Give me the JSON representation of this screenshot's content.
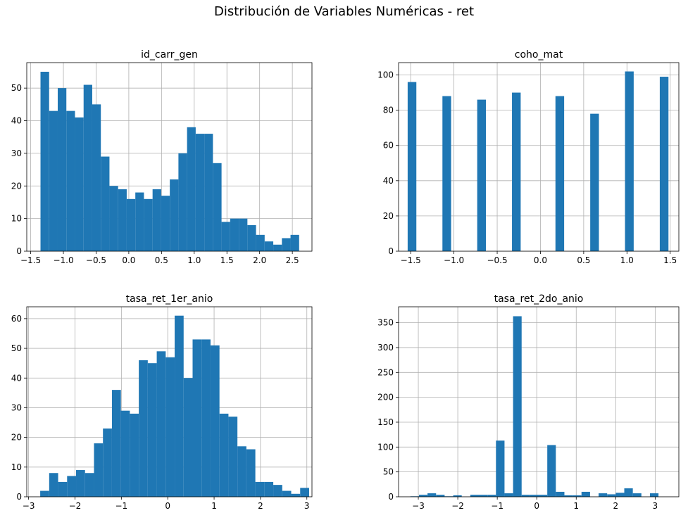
{
  "figure": {
    "title": "Distribución de Variables Numéricas - ret"
  },
  "colors": {
    "bar": "#1f77b4",
    "grid": "#b0b0b0",
    "axis": "#000000"
  },
  "chart_data": [
    {
      "type": "bar",
      "title": "id_carr_gen",
      "bins": {
        "start": -1.35,
        "width": 0.1318
      },
      "values": [
        55,
        43,
        50,
        43,
        41,
        51,
        45,
        29,
        20,
        19,
        16,
        18,
        16,
        19,
        17,
        22,
        30,
        38,
        36,
        36,
        27,
        9,
        10,
        10,
        8,
        5,
        3,
        2,
        4,
        5
      ],
      "xlim": [
        -1.56,
        2.8
      ],
      "ylim": [
        0,
        57.8
      ],
      "xticks": [
        -1.5,
        -1.0,
        -0.5,
        0.0,
        0.5,
        1.0,
        1.5,
        2.0,
        2.5
      ],
      "xtick_labels": [
        "−1.5",
        "−1.0",
        "−0.5",
        "0.0",
        "0.5",
        "1.0",
        "1.5",
        "2.0",
        "2.5"
      ],
      "yticks": [
        0,
        10,
        20,
        30,
        40,
        50
      ],
      "ytick_labels": [
        "0",
        "10",
        "20",
        "30",
        "40",
        "50"
      ],
      "grid": true
    },
    {
      "type": "bar",
      "title": "coho_mat",
      "bins": {
        "start": -1.535,
        "width": 0.1005
      },
      "values": [
        96,
        0,
        0,
        0,
        88,
        0,
        0,
        0,
        86,
        0,
        0,
        0,
        90,
        0,
        0,
        0,
        0,
        88,
        0,
        0,
        0,
        78,
        0,
        0,
        0,
        102,
        0,
        0,
        0,
        99
      ],
      "xlim": [
        -1.64,
        1.6
      ],
      "ylim": [
        0,
        107
      ],
      "xticks": [
        -1.5,
        -1.0,
        -0.5,
        0.0,
        0.5,
        1.0,
        1.5
      ],
      "xtick_labels": [
        "−1.5",
        "−1.0",
        "−0.5",
        "0.0",
        "0.5",
        "1.0",
        "1.5"
      ],
      "yticks": [
        0,
        20,
        40,
        60,
        80,
        100
      ],
      "ytick_labels": [
        "0",
        "20",
        "40",
        "60",
        "80",
        "100"
      ],
      "grid": true
    },
    {
      "type": "bar",
      "title": "tasa_ret_1er_anio",
      "bins": {
        "start": -2.75,
        "width": 0.1933
      },
      "values": [
        2,
        8,
        5,
        7,
        9,
        8,
        18,
        23,
        36,
        29,
        28,
        46,
        45,
        49,
        47,
        61,
        40,
        53,
        53,
        51,
        28,
        27,
        17,
        16,
        5,
        5,
        4,
        2,
        1,
        3
      ],
      "xlim": [
        -3.04,
        3.11
      ],
      "ylim": [
        0,
        64
      ],
      "xticks": [
        -3,
        -2,
        -1,
        0,
        1,
        2,
        3
      ],
      "xtick_labels": [
        "−3",
        "−2",
        "−1",
        "0",
        "1",
        "2",
        "3"
      ],
      "yticks": [
        0,
        10,
        20,
        30,
        40,
        50,
        60
      ],
      "ytick_labels": [
        "0",
        "10",
        "20",
        "30",
        "40",
        "50",
        "60"
      ],
      "grid": true
    },
    {
      "type": "bar",
      "title": "tasa_ret_2do_anio",
      "bins": {
        "start": -3.2,
        "width": 0.2167
      },
      "values": [
        1,
        4,
        7,
        4,
        1,
        3,
        0,
        4,
        4,
        4,
        113,
        7,
        363,
        4,
        4,
        4,
        104,
        10,
        3,
        3,
        10,
        0,
        7,
        5,
        8,
        17,
        7,
        0,
        7,
        0
      ],
      "xlim": [
        -3.5,
        3.6
      ],
      "ylim": [
        0,
        382
      ],
      "xticks": [
        -3,
        -2,
        -1,
        0,
        1,
        2,
        3
      ],
      "xtick_labels": [
        "−3",
        "−2",
        "−1",
        "0",
        "1",
        "2",
        "3"
      ],
      "yticks": [
        0,
        50,
        100,
        150,
        200,
        250,
        300,
        350
      ],
      "ytick_labels": [
        "0",
        "50",
        "100",
        "150",
        "200",
        "250",
        "300",
        "350"
      ],
      "grid": true
    }
  ]
}
